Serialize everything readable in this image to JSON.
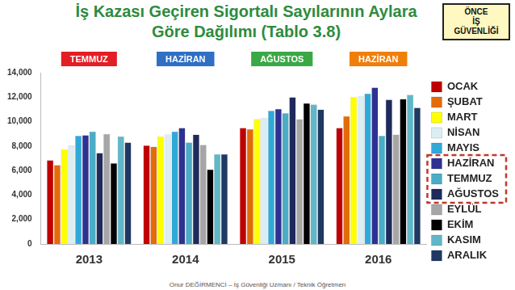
{
  "chart_data": {
    "type": "bar",
    "title": "İş Kazası Geçiren Sigortalı Sayılarının Aylara Göre Dağılımı (Tablo 3.8)",
    "categories": [
      "2013",
      "2014",
      "2015",
      "2016"
    ],
    "series": [
      {
        "name": "OCAK",
        "color": "#c00000",
        "values": [
          6850,
          8050,
          9500,
          9500
        ]
      },
      {
        "name": "ŞUBAT",
        "color": "#e36c09",
        "values": [
          6450,
          7950,
          9400,
          10450
        ]
      },
      {
        "name": "MART",
        "color": "#ffff00",
        "values": [
          7750,
          8800,
          10200,
          12000
        ]
      },
      {
        "name": "NİSAN",
        "color": "#dbeef4",
        "values": [
          8050,
          8950,
          10300,
          12100
        ]
      },
      {
        "name": "MAYIS",
        "color": "#31a9d8",
        "values": [
          8850,
          9200,
          10900,
          12300
        ]
      },
      {
        "name": "HAZİRAN",
        "color": "#2e3192",
        "values": [
          8900,
          9500,
          11050,
          12800
        ]
      },
      {
        "name": "TEMMUZ",
        "color": "#4bacc6",
        "values": [
          9200,
          8300,
          10700,
          8850
        ]
      },
      {
        "name": "AĞUSTOS",
        "color": "#1f2a5c",
        "values": [
          7450,
          8950,
          12000,
          11800
        ]
      },
      {
        "name": "EYLÜL",
        "color": "#a6a6a6",
        "values": [
          9000,
          8100,
          10200,
          8950
        ]
      },
      {
        "name": "EKİM",
        "color": "#000000",
        "values": [
          6600,
          6100,
          11500,
          11850
        ]
      },
      {
        "name": "KASIM",
        "color": "#5fb7c7",
        "values": [
          8800,
          7350,
          11400,
          12200
        ]
      },
      {
        "name": "ARALIK",
        "color": "#1f3864",
        "values": [
          8300,
          7350,
          11000,
          11150
        ]
      }
    ],
    "ylim": [
      0,
      14000
    ],
    "yticks": [
      0,
      {
        "value": 2000,
        "label": "2,000"
      },
      {
        "value": 4000,
        "label": "4,000"
      },
      {
        "value": 6000,
        "label": "6,000"
      },
      {
        "value": 8000,
        "label": "8,000"
      },
      {
        "value": 10000,
        "label": "10,000"
      },
      {
        "value": 12000,
        "label": "12,000"
      },
      {
        "value": 14000,
        "label": "14,000"
      }
    ],
    "grid": false,
    "legend": "right",
    "annotations": [
      {
        "text": "TEMMUZ",
        "color": "#e31e24"
      },
      {
        "text": "HAZİRAN",
        "color": "#2f6fc4"
      },
      {
        "text": "AĞUSTOS",
        "color": "#3aa845"
      },
      {
        "text": "HAZİRAN",
        "color": "#f07f09"
      }
    ]
  },
  "badge": [
    "ÖNCE",
    "İŞ",
    "GÜVENLİĞİ"
  ],
  "footer": "Onur DEĞİRMENCİ – İş Güvenliği Uzmanı / Teknik Öğretmen"
}
